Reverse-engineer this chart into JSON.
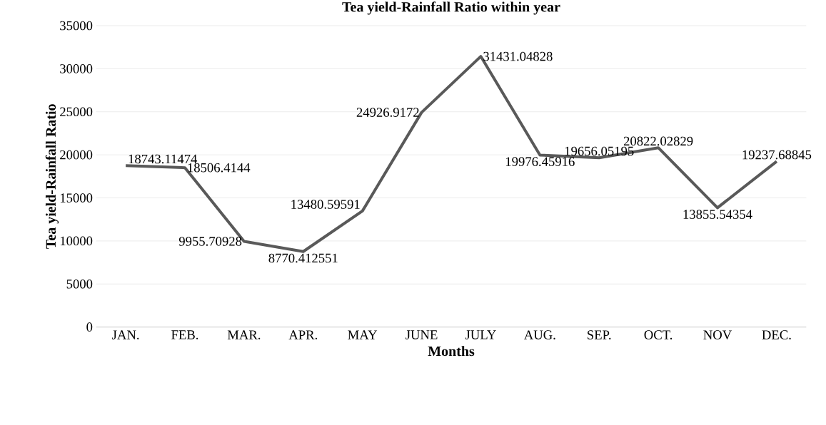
{
  "chart_data": {
    "type": "line",
    "title": "Tea yield-Rainfall Ratio within year",
    "xlabel": "Months",
    "ylabel": "Tea yield-Rainfall Ratio",
    "categories": [
      "JAN.",
      "FEB.",
      "MAR.",
      "APR.",
      "MAY",
      "JUNE",
      "JULY",
      "AUG.",
      "SEP.",
      "OCT.",
      "NOV",
      "DEC."
    ],
    "series": [
      {
        "color": "#595959",
        "values": [
          18743.11474,
          18506.4144,
          9955.70928,
          8770.412551,
          13480.59591,
          24926.9172,
          31431.04828,
          19976.45916,
          19656.05195,
          20822.02829,
          13855.54354,
          19237.68845
        ]
      }
    ],
    "ylim": [
      0,
      35000
    ],
    "yticks": [
      0,
      5000,
      10000,
      15000,
      20000,
      25000,
      30000,
      35000
    ],
    "grid": "y",
    "data_labels": true,
    "marker": "none",
    "line_style": "solid"
  }
}
